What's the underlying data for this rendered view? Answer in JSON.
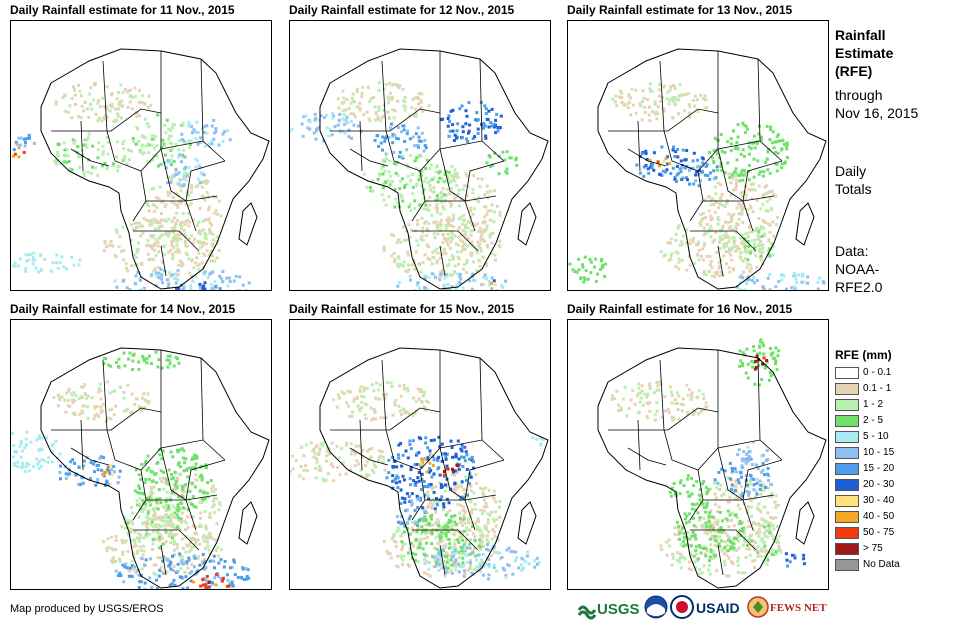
{
  "panels": [
    {
      "title": "Daily Rainfall estimate for 11 Nov., 2015"
    },
    {
      "title": "Daily Rainfall estimate for 12 Nov., 2015"
    },
    {
      "title": "Daily Rainfall estimate for 13 Nov., 2015"
    },
    {
      "title": "Daily Rainfall estimate for 14 Nov., 2015"
    },
    {
      "title": "Daily Rainfall estimate for 15 Nov., 2015"
    },
    {
      "title": "Daily Rainfall estimate for 16 Nov., 2015"
    }
  ],
  "sidebar": {
    "heading_1": "Rainfall",
    "heading_2": "Estimate",
    "heading_3": "(RFE)",
    "through_1": "through",
    "through_2": "Nov 16, 2015",
    "daily_1": "Daily",
    "daily_2": "Totals",
    "data_1": "Data:",
    "data_2": "NOAA-",
    "data_3": "RFE2.0"
  },
  "legend": {
    "title": "RFE (mm)",
    "items": [
      {
        "label": "0 - 0.1",
        "color": "#ffffff"
      },
      {
        "label": "0.1 - 1",
        "color": "#e6d3b3"
      },
      {
        "label": "1 - 2",
        "color": "#b8f0b0"
      },
      {
        "label": "2 - 5",
        "color": "#6fe06a"
      },
      {
        "label": "5 - 10",
        "color": "#a8ecf2"
      },
      {
        "label": "10 - 15",
        "color": "#8fbff0"
      },
      {
        "label": "15 - 20",
        "color": "#4d9de8"
      },
      {
        "label": "20 - 30",
        "color": "#1e5fd8"
      },
      {
        "label": "30 - 40",
        "color": "#ffe37a"
      },
      {
        "label": "40 - 50",
        "color": "#f5a623"
      },
      {
        "label": "50 - 75",
        "color": "#f03c10"
      },
      {
        "label": "> 75",
        "color": "#a01818"
      },
      {
        "label": "No Data",
        "color": "#969696"
      }
    ]
  },
  "credit": "Map produced by USGS/EROS",
  "logos": {
    "usgs": "USGS",
    "usaid": "USAID",
    "fewsnet": "FEWS NET"
  }
}
